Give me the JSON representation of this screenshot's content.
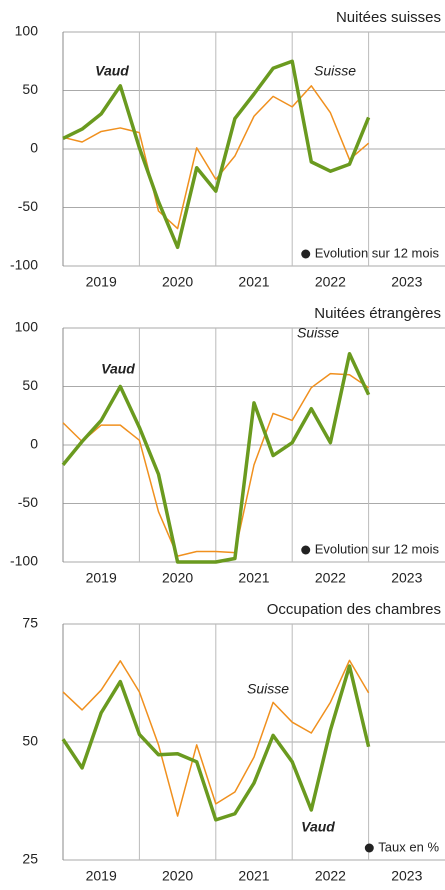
{
  "chart_data": [
    {
      "type": "line",
      "title": "Nuitées suisses",
      "note": "Evolution sur 12 mois",
      "x": [
        2019,
        2019.25,
        2019.5,
        2019.75,
        2020,
        2020.25,
        2020.5,
        2020.75,
        2021,
        2021.25,
        2021.5,
        2021.75,
        2022,
        2022.25,
        2022.5,
        2022.75,
        2023
      ],
      "series": [
        {
          "name": "Vaud",
          "color": "#6a9a1f",
          "values": [
            9,
            17,
            30,
            54,
            1,
            -45,
            -84,
            -16,
            -36,
            26,
            47,
            69,
            75,
            -11,
            -19,
            -13,
            27
          ]
        },
        {
          "name": "Suisse",
          "color": "#f0901e",
          "values": [
            10,
            6,
            15,
            18,
            14,
            -53,
            -68,
            1,
            -26,
            -6,
            28,
            45,
            36,
            54,
            31,
            -9,
            5
          ]
        }
      ],
      "xlim": [
        2019,
        2024
      ],
      "xticks": [
        {
          "value": 2019.5,
          "label": "2019"
        },
        {
          "value": 2020.5,
          "label": "2020"
        },
        {
          "value": 2021.5,
          "label": "2021"
        },
        {
          "value": 2022.5,
          "label": "2022"
        },
        {
          "value": 2023.5,
          "label": "2023"
        }
      ],
      "xgrid": [
        2020,
        2021,
        2022,
        2023
      ],
      "ylim": [
        -100,
        100
      ],
      "yticks": [
        100,
        50,
        0,
        -50,
        -100
      ],
      "grid": true
    },
    {
      "type": "line",
      "title": "Nuitées étrangères",
      "note": "Evolution sur 12 mois",
      "x": [
        2019,
        2019.25,
        2019.5,
        2019.75,
        2020,
        2020.25,
        2020.5,
        2020.75,
        2021,
        2021.25,
        2021.5,
        2021.75,
        2022,
        2022.25,
        2022.5,
        2022.75,
        2023
      ],
      "series": [
        {
          "name": "Vaud",
          "color": "#6a9a1f",
          "values": [
            -17,
            3,
            21,
            50,
            15,
            -25,
            -100,
            -100,
            -100,
            -97,
            36,
            -9,
            2,
            31,
            2,
            78,
            43
          ]
        },
        {
          "name": "Suisse",
          "color": "#f0901e",
          "values": [
            19,
            3,
            17,
            17,
            4,
            -57,
            -95,
            -91,
            -91,
            -92,
            -17,
            27,
            21,
            49,
            61,
            60,
            49
          ]
        }
      ],
      "xlim": [
        2019,
        2024
      ],
      "xticks": [
        {
          "value": 2019.5,
          "label": "2019"
        },
        {
          "value": 2020.5,
          "label": "2020"
        },
        {
          "value": 2021.5,
          "label": "2021"
        },
        {
          "value": 2022.5,
          "label": "2022"
        },
        {
          "value": 2023.5,
          "label": "2023"
        }
      ],
      "xgrid": [
        2020,
        2021,
        2022,
        2023
      ],
      "ylim": [
        -100,
        100
      ],
      "yticks": [
        100,
        50,
        0,
        -50,
        -100
      ],
      "grid": true
    },
    {
      "type": "line",
      "title": "Occupation des chambres",
      "note": "Taux en %",
      "x": [
        2019,
        2019.25,
        2019.5,
        2019.75,
        2020,
        2020.25,
        2020.5,
        2020.75,
        2021,
        2021.25,
        2021.5,
        2021.75,
        2022,
        2022.25,
        2022.5,
        2022.75,
        2023
      ],
      "series": [
        {
          "name": "Vaud",
          "color": "#6a9a1f",
          "values": [
            50.6,
            44.5,
            56.2,
            62.8,
            51.6,
            47.3,
            47.5,
            45.8,
            33.5,
            34.8,
            41.3,
            51.4,
            45.8,
            35.6,
            52.5,
            66.1,
            49
          ]
        },
        {
          "name": "Suisse",
          "color": "#f0901e",
          "values": [
            60.6,
            56.8,
            61,
            67.2,
            60.6,
            49.4,
            34.3,
            49.4,
            36.9,
            39.4,
            46.8,
            58.4,
            54.2,
            51.9,
            58.4,
            67.3,
            60.4
          ]
        }
      ],
      "xlim": [
        2019,
        2024
      ],
      "xticks": [
        {
          "value": 2019.5,
          "label": "2019"
        },
        {
          "value": 2020.5,
          "label": "2020"
        },
        {
          "value": 2021.5,
          "label": "2021"
        },
        {
          "value": 2022.5,
          "label": "2022"
        },
        {
          "value": 2023.5,
          "label": "2023"
        }
      ],
      "xgrid": [
        2020,
        2021,
        2022,
        2023
      ],
      "ylim": [
        25,
        75
      ],
      "yticks": [
        75,
        50,
        25
      ],
      "grid": true
    }
  ]
}
